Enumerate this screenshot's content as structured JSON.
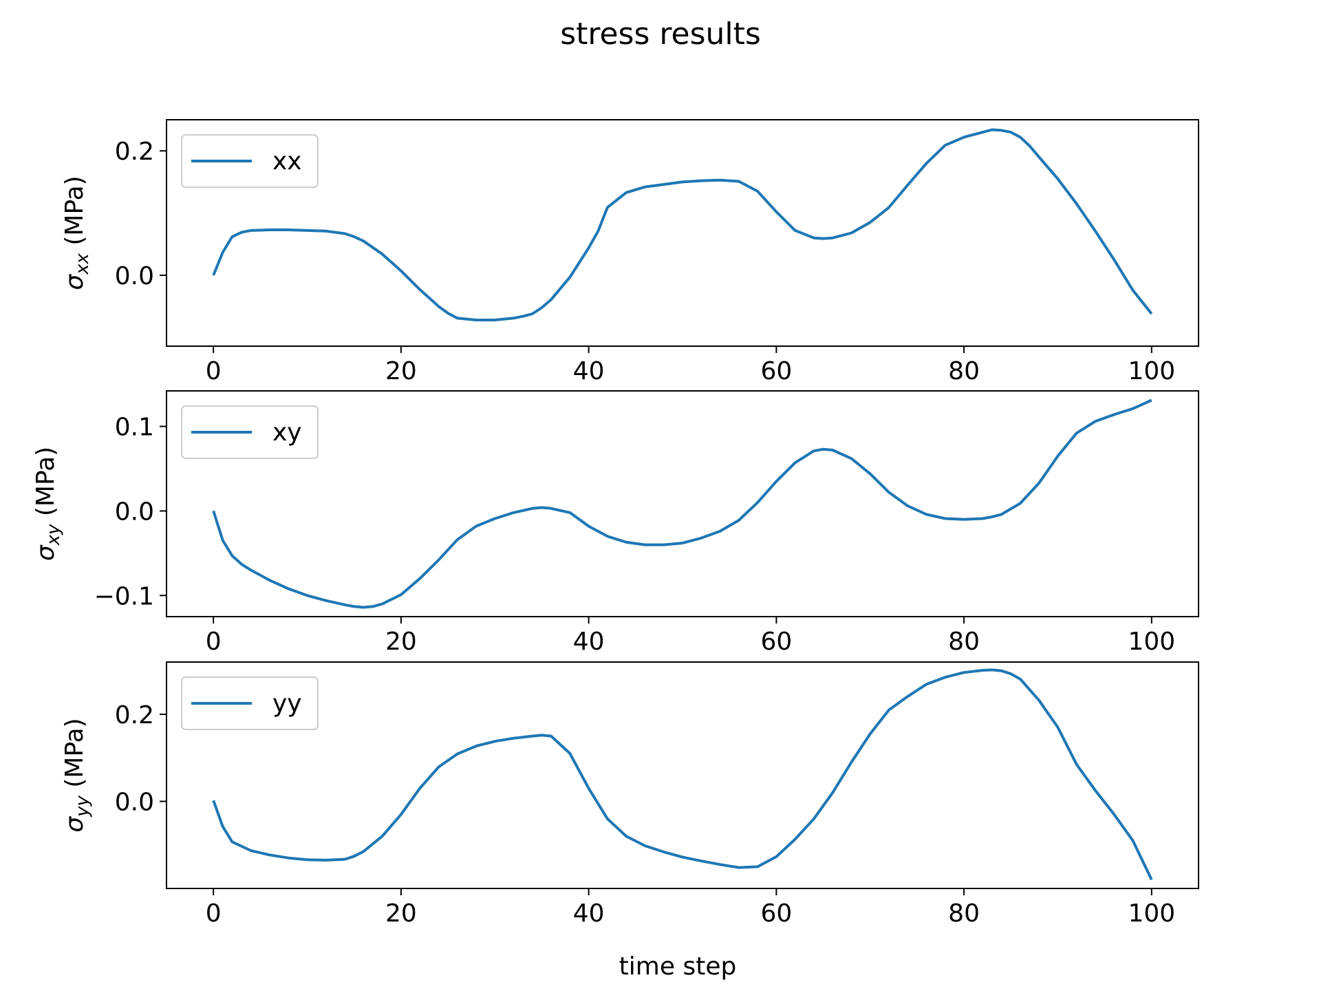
{
  "chart_data": {
    "title": "stress results",
    "xlabel": "time step",
    "line_color": "#1f77b4",
    "subplots": [
      {
        "type": "line",
        "legend_label": "xx",
        "legend_position": "upper-left",
        "ylabel": {
          "prefix": "σ",
          "subscript": "xx",
          "suffix": " (MPa)"
        },
        "xlim": [
          -5,
          105
        ],
        "ylim": [
          -0.114,
          0.25
        ],
        "xticks": [
          0,
          20,
          40,
          60,
          80,
          100
        ],
        "xtick_labels": [
          "0",
          "20",
          "40",
          "60",
          "80",
          "100"
        ],
        "yticks": [
          0.0,
          0.2
        ],
        "ytick_labels": [
          "0.0",
          "0.2"
        ],
        "x": [
          0,
          1,
          2,
          3,
          4,
          6,
          8,
          10,
          12,
          14,
          15,
          16,
          18,
          20,
          22,
          24,
          25,
          26,
          28,
          30,
          32,
          33,
          34,
          35,
          36,
          38,
          40,
          41,
          42,
          44,
          46,
          48,
          50,
          52,
          54,
          55,
          56,
          58,
          60,
          62,
          64,
          65,
          66,
          68,
          70,
          72,
          74,
          76,
          78,
          80,
          82,
          83,
          84,
          85,
          86,
          87,
          88,
          90,
          92,
          94,
          96,
          98,
          100
        ],
        "y": [
          0.0,
          0.037,
          0.062,
          0.069,
          0.072,
          0.073,
          0.073,
          0.072,
          0.071,
          0.067,
          0.062,
          0.055,
          0.034,
          0.007,
          -0.023,
          -0.05,
          -0.061,
          -0.069,
          -0.072,
          -0.072,
          -0.069,
          -0.066,
          -0.062,
          -0.052,
          -0.039,
          -0.003,
          0.044,
          0.071,
          0.109,
          0.133,
          0.142,
          0.146,
          0.15,
          0.152,
          0.153,
          0.152,
          0.151,
          0.135,
          0.102,
          0.072,
          0.06,
          0.059,
          0.06,
          0.068,
          0.085,
          0.109,
          0.145,
          0.18,
          0.209,
          0.222,
          0.23,
          0.234,
          0.233,
          0.23,
          0.222,
          0.208,
          0.19,
          0.155,
          0.115,
          0.071,
          0.025,
          -0.024,
          -0.062
        ]
      },
      {
        "type": "line",
        "legend_label": "xy",
        "legend_position": "upper-left",
        "ylabel": {
          "prefix": "σ",
          "subscript": "xy",
          "suffix": " (MPa)"
        },
        "xlim": [
          -5,
          105
        ],
        "ylim": [
          -0.125,
          0.142
        ],
        "xticks": [
          0,
          20,
          40,
          60,
          80,
          100
        ],
        "xtick_labels": [
          "0",
          "20",
          "40",
          "60",
          "80",
          "100"
        ],
        "yticks": [
          -0.1,
          0.0,
          0.1
        ],
        "ytick_labels": [
          "−0.1",
          "0.0",
          "0.1"
        ],
        "x": [
          0,
          1,
          2,
          3,
          4,
          6,
          8,
          10,
          12,
          14,
          15,
          16,
          17,
          18,
          20,
          22,
          24,
          26,
          28,
          30,
          32,
          34,
          35,
          36,
          38,
          40,
          42,
          44,
          46,
          48,
          50,
          52,
          54,
          56,
          58,
          60,
          62,
          64,
          65,
          66,
          68,
          70,
          72,
          74,
          76,
          78,
          80,
          82,
          83,
          84,
          86,
          88,
          90,
          92,
          94,
          96,
          98,
          100
        ],
        "y": [
          0.0,
          -0.035,
          -0.053,
          -0.063,
          -0.07,
          -0.082,
          -0.092,
          -0.1,
          -0.106,
          -0.111,
          -0.113,
          -0.114,
          -0.113,
          -0.11,
          -0.099,
          -0.08,
          -0.058,
          -0.034,
          -0.018,
          -0.009,
          -0.002,
          0.003,
          0.004,
          0.003,
          -0.002,
          -0.018,
          -0.03,
          -0.037,
          -0.04,
          -0.04,
          -0.038,
          -0.032,
          -0.024,
          -0.011,
          0.01,
          0.035,
          0.057,
          0.071,
          0.073,
          0.072,
          0.062,
          0.044,
          0.022,
          0.006,
          -0.004,
          -0.009,
          -0.01,
          -0.009,
          -0.007,
          -0.004,
          0.009,
          0.033,
          0.065,
          0.092,
          0.106,
          0.114,
          0.121,
          0.131
        ]
      },
      {
        "type": "line",
        "legend_label": "yy",
        "legend_position": "upper-left",
        "ylabel": {
          "prefix": "σ",
          "subscript": "yy",
          "suffix": " (MPa)"
        },
        "xlim": [
          -5,
          105
        ],
        "ylim": [
          -0.2,
          0.32
        ],
        "xticks": [
          0,
          20,
          40,
          60,
          80,
          100
        ],
        "xtick_labels": [
          "0",
          "20",
          "40",
          "60",
          "80",
          "100"
        ],
        "yticks": [
          0.0,
          0.2
        ],
        "ytick_labels": [
          "0.0",
          "0.2"
        ],
        "x": [
          0,
          1,
          2,
          4,
          6,
          8,
          10,
          12,
          14,
          15,
          16,
          18,
          20,
          22,
          24,
          26,
          28,
          30,
          32,
          34,
          35,
          36,
          38,
          40,
          42,
          44,
          46,
          48,
          50,
          52,
          54,
          56,
          58,
          60,
          62,
          64,
          66,
          68,
          70,
          72,
          74,
          76,
          78,
          80,
          82,
          83,
          84,
          85,
          86,
          88,
          90,
          92,
          94,
          96,
          98,
          100
        ],
        "y": [
          0.002,
          -0.058,
          -0.093,
          -0.113,
          -0.123,
          -0.13,
          -0.134,
          -0.135,
          -0.133,
          -0.126,
          -0.115,
          -0.08,
          -0.03,
          0.03,
          0.079,
          0.109,
          0.127,
          0.138,
          0.145,
          0.15,
          0.152,
          0.15,
          0.11,
          0.03,
          -0.04,
          -0.08,
          -0.102,
          -0.116,
          -0.128,
          -0.137,
          -0.145,
          -0.152,
          -0.15,
          -0.127,
          -0.087,
          -0.04,
          0.02,
          0.09,
          0.155,
          0.21,
          0.241,
          0.269,
          0.285,
          0.296,
          0.301,
          0.302,
          0.3,
          0.293,
          0.281,
          0.232,
          0.17,
          0.085,
          0.025,
          -0.03,
          -0.09,
          -0.18
        ]
      }
    ]
  }
}
